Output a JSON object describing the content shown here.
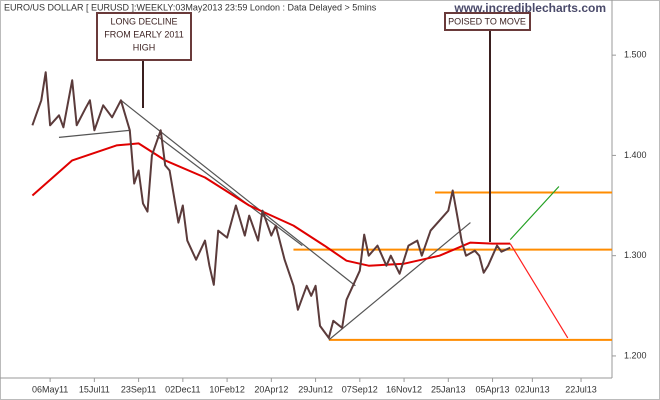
{
  "title": "EURO/US DOLLAR [ EURUSD ]:WEEKLY:03May2013 23:59 London : Data Delayed > 5mins",
  "watermark": "www.incrediblecharts.com",
  "annotations": [
    {
      "text": [
        "LONG DECLINE",
        "FROM EARLY 2011",
        "HIGH"
      ]
    },
    {
      "text": "POISED TO MOVE"
    }
  ],
  "chart_data": {
    "type": "line",
    "xlim": [
      -5,
      127
    ],
    "ylim": [
      1.178,
      1.555
    ],
    "xticks": [
      {
        "value": 0,
        "label": "06May11"
      },
      {
        "value": 10,
        "label": "15Jul11"
      },
      {
        "value": 20,
        "label": "23Sep11"
      },
      {
        "value": 30,
        "label": "02Dec11"
      },
      {
        "value": 40,
        "label": "10Feb12"
      },
      {
        "value": 50,
        "label": "20Apr12"
      },
      {
        "value": 60,
        "label": "29Jun12"
      },
      {
        "value": 70,
        "label": "07Sep12"
      },
      {
        "value": 80,
        "label": "16Nov12"
      },
      {
        "value": 90,
        "label": "25Jan13"
      },
      {
        "value": 100,
        "label": "05Apr13"
      },
      {
        "value": 109,
        "label": "02Jun13"
      },
      {
        "value": 120,
        "label": "22Jul13"
      }
    ],
    "yticks": [
      {
        "value": 1.5,
        "label": "1.500"
      },
      {
        "value": 1.4,
        "label": "1.400"
      },
      {
        "value": 1.3,
        "label": "1.300"
      },
      {
        "value": 1.2,
        "label": "1.200"
      }
    ],
    "series": [
      {
        "color": "#5b3b3b",
        "x": [
          -4,
          -2,
          -1,
          0,
          2,
          3,
          5,
          6,
          8,
          9,
          10,
          12,
          14,
          16,
          18,
          19,
          20,
          21,
          22,
          23,
          25,
          26,
          27,
          29,
          30,
          31,
          33,
          35,
          36,
          37,
          38,
          40,
          42,
          44,
          45,
          47,
          48,
          50,
          51,
          53,
          55,
          56,
          58,
          59,
          60,
          61,
          63,
          64,
          66,
          67,
          70,
          71,
          72,
          74,
          76,
          77,
          79,
          81,
          83,
          84,
          86,
          88,
          90,
          91,
          92,
          93,
          94,
          96,
          97,
          98,
          99,
          101,
          102,
          104
        ],
        "values": [
          1.43,
          1.455,
          1.483,
          1.43,
          1.44,
          1.428,
          1.475,
          1.43,
          1.447,
          1.455,
          1.425,
          1.45,
          1.438,
          1.455,
          1.425,
          1.372,
          1.385,
          1.352,
          1.344,
          1.4,
          1.425,
          1.39,
          1.385,
          1.333,
          1.35,
          1.315,
          1.296,
          1.315,
          1.29,
          1.271,
          1.325,
          1.318,
          1.35,
          1.32,
          1.34,
          1.315,
          1.345,
          1.32,
          1.33,
          1.296,
          1.27,
          1.246,
          1.27,
          1.26,
          1.27,
          1.23,
          1.218,
          1.235,
          1.228,
          1.256,
          1.285,
          1.321,
          1.3,
          1.31,
          1.29,
          1.3,
          1.282,
          1.31,
          1.315,
          1.3,
          1.325,
          1.335,
          1.345,
          1.365,
          1.34,
          1.315,
          1.3,
          1.305,
          1.3,
          1.283,
          1.29,
          1.31,
          1.304,
          1.308
        ]
      },
      {
        "color": "#e00000",
        "x": [
          -4,
          5,
          15,
          20,
          26,
          35,
          45,
          55,
          62,
          67,
          72,
          80,
          88,
          95,
          100,
          104
        ],
        "values": [
          1.36,
          1.395,
          1.41,
          1.412,
          1.395,
          1.378,
          1.35,
          1.33,
          1.31,
          1.295,
          1.29,
          1.292,
          1.3,
          1.313,
          1.312,
          1.312
        ]
      }
    ],
    "levels": [
      {
        "value": 1.363,
        "from": 87,
        "color": "#ff8c00"
      },
      {
        "value": 1.306,
        "from": 55,
        "color": "#ff8c00"
      },
      {
        "value": 1.216,
        "from": 63,
        "color": "#ff8c00"
      }
    ],
    "trendlines": [
      {
        "x": [
          2,
          18
        ],
        "y": [
          1.418,
          1.425
        ],
        "color": "#555555"
      },
      {
        "x": [
          16,
          69
        ],
        "y": [
          1.455,
          1.27
        ],
        "color": "#555555"
      },
      {
        "x": [
          24,
          57
        ],
        "y": [
          1.42,
          1.31
        ],
        "color": "#555555"
      },
      {
        "x": [
          63,
          95
        ],
        "y": [
          1.216,
          1.333
        ],
        "color": "#555555"
      },
      {
        "x": [
          104,
          115
        ],
        "y": [
          1.316,
          1.369
        ],
        "color": "#22a022"
      },
      {
        "x": [
          104,
          117
        ],
        "y": [
          1.312,
          1.218
        ],
        "color": "#ff2020"
      }
    ]
  }
}
